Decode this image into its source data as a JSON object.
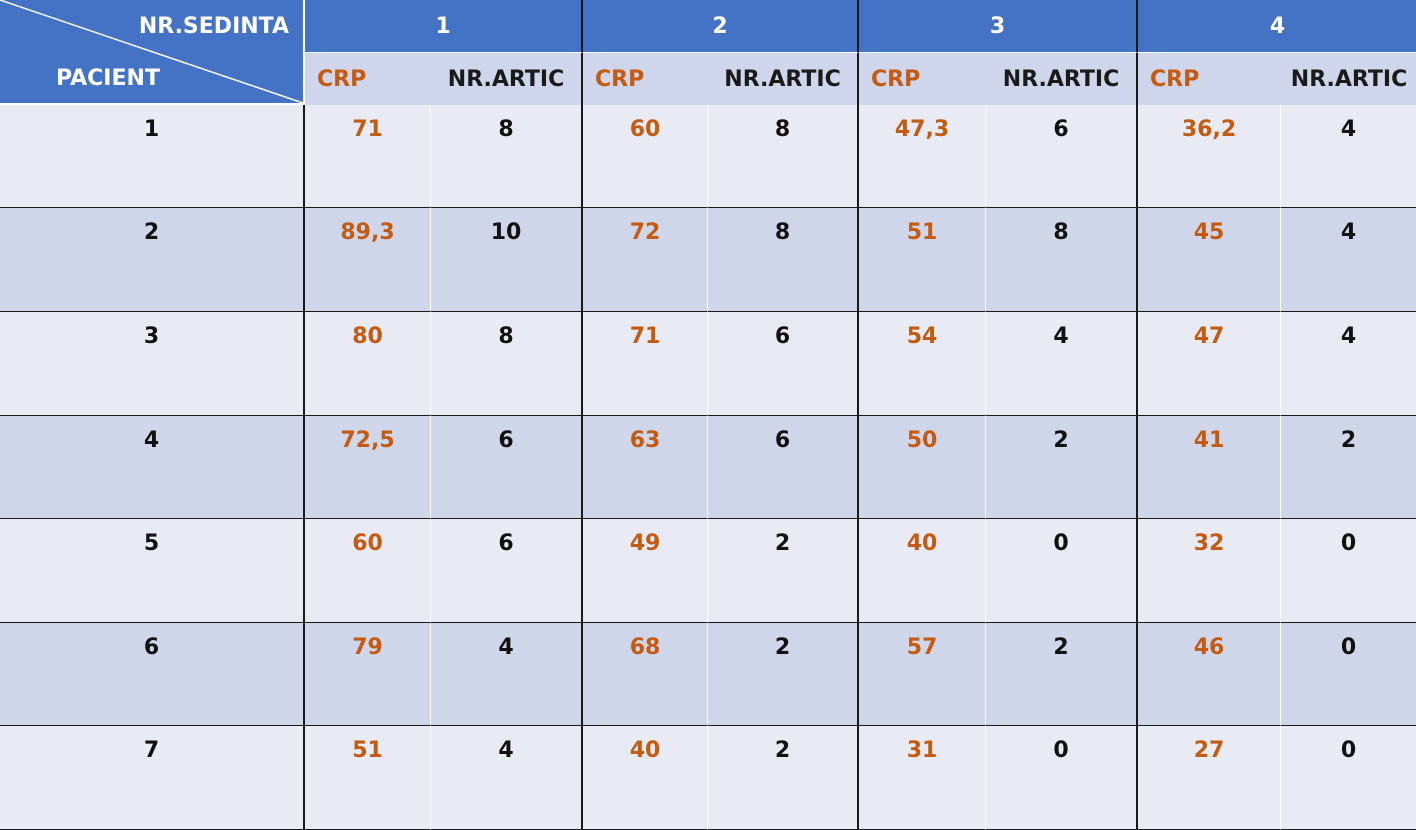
{
  "header": {
    "corner_top": "NR.SEDINTA",
    "corner_bottom": "PACIENT",
    "sessions": [
      "1",
      "2",
      "3",
      "4"
    ],
    "crp_label": "CRP",
    "artic_label": "NR.ARTIC"
  },
  "colors": {
    "header_blue": "#4472c4",
    "crp_orange": "#c55a11",
    "row_light": "#e9ebf4",
    "row_dark": "#d0d6ea"
  },
  "rows": [
    {
      "pacient": "1",
      "v": [
        "71",
        "8",
        "60",
        "8",
        "47,3",
        "6",
        "36,2",
        "4"
      ]
    },
    {
      "pacient": "2",
      "v": [
        "89,3",
        "10",
        "72",
        "8",
        "51",
        "8",
        "45",
        "4"
      ]
    },
    {
      "pacient": "3",
      "v": [
        "80",
        "8",
        "71",
        "6",
        "54",
        "4",
        "47",
        "4"
      ]
    },
    {
      "pacient": "4",
      "v": [
        "72,5",
        "6",
        "63",
        "6",
        "50",
        "2",
        "41",
        "2"
      ]
    },
    {
      "pacient": "5",
      "v": [
        "60",
        "6",
        "49",
        "2",
        "40",
        "0",
        "32",
        "0"
      ]
    },
    {
      "pacient": "6",
      "v": [
        "79",
        "4",
        "68",
        "2",
        "57",
        "2",
        "46",
        "0"
      ]
    },
    {
      "pacient": "7",
      "v": [
        "51",
        "4",
        "40",
        "2",
        "31",
        "0",
        "27",
        "0"
      ]
    }
  ]
}
